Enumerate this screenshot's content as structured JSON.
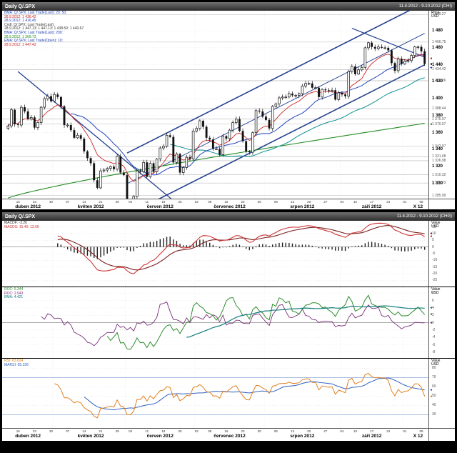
{
  "top_chart": {
    "title": "Daily Q/.SPX",
    "date_range": "11.4.2012 - 9.10.2012 (CHI)",
    "axis_header": {
      "line1": "Price",
      "line2": "USD"
    },
    "legend": [
      {
        "text": "BMA: Q/.SPX; Last Trade(Last): 20: 50:",
        "color": "#2244bb"
      },
      {
        "text": "28.9.2012: 1 436.42",
        "color": "#cc2222"
      },
      {
        "text": "28.9.2012: 1 416.45",
        "color": "#2244bb"
      },
      {
        "text": "Cndl: Q/.SPX; Last Trade(Last):",
        "color": "#333333"
      },
      {
        "text": "28.9.2012: 1 447.13: 1 447.13: 1 438.50: 1 440.67",
        "color": "#333333"
      },
      {
        "text": "BMA: Q/.SPX; Last Trade(Last): 200:",
        "color": "#2244bb"
      },
      {
        "text": "28.9.2012: 1 369.73",
        "color": "#228b22"
      },
      {
        "text": "EMA: Q/.SPX; Last Trade(Open): 10:",
        "color": "#2244bb"
      },
      {
        "text": "28.9.2012: 1 447.42",
        "color": "#cc2222"
      }
    ],
    "price_ticks": [
      1300,
      1320,
      1340,
      1360,
      1380,
      1400,
      1420,
      1440,
      1460,
      1480
    ],
    "levels": [
      {
        "value": 1499.27,
        "label": "1 499.27"
      },
      {
        "value": 1466.75,
        "label": "1 466.75"
      },
      {
        "value": 1434.42,
        "label": "1 434.42"
      },
      {
        "value": 1421.26,
        "label": "1 421.26"
      },
      {
        "value": 1388.44,
        "label": "1 388.44"
      },
      {
        "value": 1375.97,
        "label": "1 375.97"
      },
      {
        "value": 1370.07,
        "label": "1 370.07"
      },
      {
        "value": 1343.97,
        "label": "1 343.97"
      },
      {
        "value": 1331.68,
        "label": "1 331.68"
      },
      {
        "value": 1326.98,
        "label": "1 326.98"
      },
      {
        "value": 1310.32,
        "label": "1 310.32"
      },
      {
        "value": 1300.73,
        "label": "1 300.73"
      },
      {
        "value": 1285.99,
        "label": "1 285.99"
      }
    ],
    "markers": [
      {
        "value": 1440.67,
        "color": "#000000"
      },
      {
        "value": 1447.42,
        "color": "#cc2222"
      },
      {
        "value": 1436.42,
        "color": "#2244bb"
      },
      {
        "value": 1369.73,
        "color": "#228b22"
      }
    ],
    "chart_data": {
      "type": "candlestick",
      "symbol": "Q/.SPX",
      "interval": "Daily",
      "ylim": [
        1284,
        1502
      ],
      "first_open": 1365,
      "closes": [
        1368,
        1387,
        1370,
        1369,
        1390,
        1385,
        1376,
        1378,
        1366,
        1372,
        1390,
        1400,
        1403,
        1397,
        1405,
        1402,
        1391,
        1369,
        1369,
        1363,
        1354,
        1357,
        1353,
        1338,
        1330,
        1324,
        1304,
        1295,
        1315,
        1316,
        1318,
        1320,
        1317,
        1332,
        1313,
        1310,
        1278,
        1278,
        1285,
        1315,
        1314,
        1325,
        1308,
        1324,
        1314,
        1329,
        1342,
        1344,
        1357,
        1355,
        1325,
        1335,
        1313,
        1319,
        1331,
        1329,
        1362,
        1365,
        1374,
        1367,
        1354,
        1352,
        1341,
        1341,
        1334,
        1356,
        1353,
        1363,
        1372,
        1376,
        1362,
        1350,
        1338,
        1337,
        1360,
        1386,
        1385,
        1379,
        1375,
        1365,
        1391,
        1394,
        1401,
        1402,
        1402,
        1406,
        1404,
        1404,
        1406,
        1415,
        1418,
        1418,
        1413,
        1413,
        1402,
        1411,
        1410,
        1409,
        1410,
        1399,
        1407,
        1405,
        1403,
        1432,
        1438,
        1429,
        1434,
        1437,
        1460,
        1466,
        1461,
        1459,
        1461,
        1460,
        1460,
        1457,
        1442,
        1433,
        1447,
        1441,
        1444,
        1445,
        1451,
        1461,
        1461,
        1456,
        1441
      ],
      "overlays": [
        {
          "name": "EMA 10",
          "kind": "ema",
          "period": 10,
          "color": "#cc2222"
        },
        {
          "name": "SMA 20",
          "kind": "sma",
          "period": 20,
          "color": "#2244bb"
        },
        {
          "name": "SMA 50",
          "kind": "sma",
          "period": 50,
          "color": "#109090"
        },
        {
          "name": "SMA 200",
          "kind": "trend",
          "start": 1283,
          "end": 1371,
          "color": "#228b22"
        }
      ],
      "trendlines": [
        {
          "x1": 3,
          "y1": 1432,
          "x2": 50,
          "y2": 1280,
          "color": "#24408e",
          "width": 1.3
        },
        {
          "x1": 36,
          "y1": 1263,
          "x2": 126,
          "y2": 1440,
          "color": "#24408e",
          "width": 1.6
        },
        {
          "x1": 36,
          "y1": 1300,
          "x2": 126,
          "y2": 1477,
          "color": "#24408e",
          "width": 0.9
        },
        {
          "x1": 36,
          "y1": 1336,
          "x2": 126,
          "y2": 1513,
          "color": "#24408e",
          "width": 1.6
        },
        {
          "x1": 104,
          "y1": 1483,
          "x2": 126,
          "y2": 1449,
          "color": "#24408e",
          "width": 1.2
        }
      ]
    }
  },
  "bottom_chart": {
    "title": "Daily Q/.SPX",
    "date_range": "11.4.2012 - 9.10.2012 (CHG)",
    "panels": [
      {
        "id": "macd",
        "axis_header": {
          "line1": "Value",
          "line2": "USD"
        },
        "legend": [
          {
            "text": "MACDF: -3.26",
            "color": "#333333"
          },
          {
            "text": "MACDS: 15.40: 13.66",
            "color": "#cc3333"
          }
        ],
        "chart_data": {
          "type": "macd",
          "fast": 12,
          "slow": 26,
          "signal_period": 9,
          "ylim": [
            -28,
            18
          ],
          "tick_step": 5,
          "colors": {
            "macd": "#cc3333",
            "signal": "#7a1f1f",
            "histogram": "#222222"
          },
          "last_values": {
            "histogram": -3.26,
            "macd": 15.4,
            "signal": 13.66
          }
        }
      },
      {
        "id": "roc",
        "axis_header": {
          "line1": "Value",
          "line2": "USD"
        },
        "legend": [
          {
            "text": "ROC: 5.344",
            "color": "#2e8b2e"
          },
          {
            "text": "ROC: 2.943",
            "color": "#7a2f7a"
          },
          {
            "text": "BMA: 4.421",
            "color": "#107a7a"
          }
        ],
        "chart_data": {
          "type": "roc",
          "ylim": [
            -9,
            9
          ],
          "tick_step": 2,
          "series": [
            {
              "name": "ROC 30",
              "period": 30,
              "color": "#2e8b2e"
            },
            {
              "name": "ROC 10",
              "period": 10,
              "color": "#7a2f7a"
            },
            {
              "name": "SMA of ROC 30",
              "ma_period": 25,
              "color": "#107a7a"
            }
          ],
          "last_values": {
            "roc_fast": 5.344,
            "roc_slow": 2.943,
            "ma": 4.421
          }
        }
      },
      {
        "id": "rsi",
        "axis_header": {
          "line1": "Value",
          "line2": "USD"
        },
        "legend": [
          {
            "text": "RSI: 63.624",
            "color": "#e08020"
          },
          {
            "text": "MARSI: 65.326",
            "color": "#3060c0"
          }
        ],
        "chart_data": {
          "type": "rsi",
          "period": 14,
          "ma_period": 10,
          "ylim": [
            18,
            88
          ],
          "ticks": [
            30,
            40,
            50,
            60,
            70,
            80
          ],
          "bands": [
            70,
            30
          ],
          "colors": {
            "rsi": "#e08020",
            "marsi": "#3060c0",
            "band": "#9bb5de"
          },
          "last_values": {
            "rsi": 63.624,
            "marsi": 65.326
          }
        }
      }
    ]
  },
  "x_axis": {
    "month_starts": [
      14,
      36,
      57,
      78,
      101,
      120
    ],
    "months": [
      {
        "label": "duben 2012",
        "center": 6
      },
      {
        "label": "květen 2012",
        "center": 25
      },
      {
        "label": "červen 2012",
        "center": 46
      },
      {
        "label": "červenec 2012",
        "center": 67
      },
      {
        "label": "srpen 2012",
        "center": 89
      },
      {
        "label": "září 2012",
        "center": 110
      },
      {
        "label": "X 12",
        "center": 124
      }
    ],
    "minor_ticks": [
      {
        "label": "16",
        "index": 3
      },
      {
        "label": "23",
        "index": 8
      },
      {
        "label": "30",
        "index": 13
      },
      {
        "label": "07",
        "index": 18
      },
      {
        "label": "14",
        "index": 23
      },
      {
        "label": "21",
        "index": 28
      },
      {
        "label": "29",
        "index": 33
      },
      {
        "label": "04",
        "index": 37
      },
      {
        "label": "11",
        "index": 42
      },
      {
        "label": "18",
        "index": 47
      },
      {
        "label": "25",
        "index": 52
      },
      {
        "label": "02",
        "index": 57
      },
      {
        "label": "09",
        "index": 61
      },
      {
        "label": "16",
        "index": 66
      },
      {
        "label": "23",
        "index": 71
      },
      {
        "label": "30",
        "index": 76
      },
      {
        "label": "06",
        "index": 81
      },
      {
        "label": "13",
        "index": 86
      },
      {
        "label": "20",
        "index": 91
      },
      {
        "label": "27",
        "index": 96
      },
      {
        "label": "04",
        "index": 101
      },
      {
        "label": "10",
        "index": 105
      },
      {
        "label": "17",
        "index": 110
      },
      {
        "label": "24",
        "index": 115
      },
      {
        "label": "01",
        "index": 120
      },
      {
        "label": "08",
        "index": 125
      }
    ]
  },
  "colors": {
    "channel": "#24408e",
    "grid": "#e4e4e4",
    "level_line": "#b5b5b5",
    "titlebar_dark": "#2e2e2e",
    "candle": "#111111"
  }
}
